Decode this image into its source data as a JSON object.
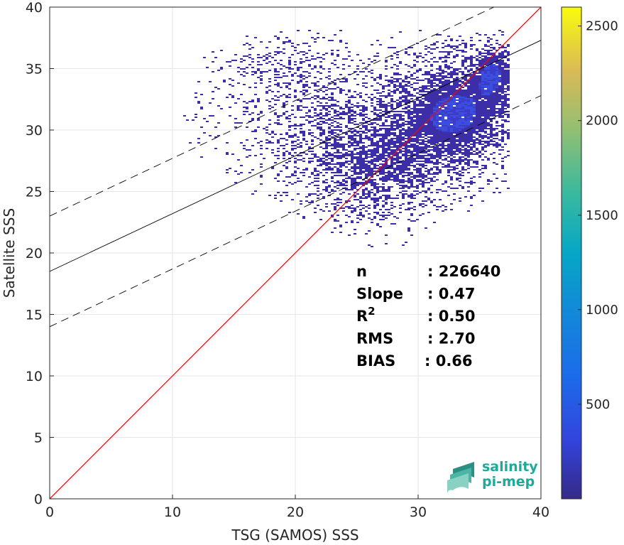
{
  "chart_data": {
    "type": "heatmap",
    "xlabel": "TSG (SAMOS) SSS",
    "ylabel": "Satellite SSS",
    "xlim": [
      0,
      40
    ],
    "ylim": [
      0,
      40
    ],
    "xticks": [
      "0",
      "10",
      "20",
      "30",
      "40"
    ],
    "yticks": [
      "0",
      "5",
      "10",
      "15",
      "20",
      "25",
      "30",
      "35",
      "40"
    ],
    "grid": true,
    "colorbar": {
      "range": [
        0,
        2600
      ],
      "ticks": [
        "500",
        "1000",
        "1500",
        "2000",
        "2500"
      ],
      "colormap": "parula"
    },
    "lines": [
      {
        "kind": "identity",
        "color": "#ff0000",
        "style": "solid",
        "intercept": 0,
        "slope": 1
      },
      {
        "kind": "regression",
        "color": "#000000",
        "style": "solid",
        "intercept": 18.5,
        "slope": 0.47
      },
      {
        "kind": "upper-bound",
        "color": "#000000",
        "style": "dashed",
        "intercept": 23,
        "slope": 0.47
      },
      {
        "kind": "lower-bound",
        "color": "#000000",
        "style": "dashed",
        "intercept": 14,
        "slope": 0.47
      }
    ],
    "density_blobs": [
      {
        "x": 33,
        "y": 31.5,
        "sx": 3.0,
        "sy": 2.6,
        "weight": 1.0
      },
      {
        "x": 36,
        "y": 34.8,
        "sx": 1.0,
        "sy": 1.4,
        "weight": 0.8
      },
      {
        "x": 27,
        "y": 27,
        "sx": 3.2,
        "sy": 2.5,
        "weight": 0.55
      },
      {
        "x": 22,
        "y": 31,
        "sx": 5.0,
        "sy": 3.2,
        "weight": 0.25
      },
      {
        "x": 19,
        "y": 35.5,
        "sx": 3.0,
        "sy": 1.0,
        "weight": 0.15
      }
    ],
    "stats": [
      {
        "label": "n",
        "value": ": 226640"
      },
      {
        "label": "Slope",
        "value": ": 0.47"
      },
      {
        "label": "R",
        "sup": "2",
        "value": ": 0.50"
      },
      {
        "label": "RMS",
        "value": ": 2.70"
      },
      {
        "label": "BIAS",
        "value": ": 0.66"
      }
    ]
  },
  "logo": {
    "line1": "salinity",
    "line2": "pi-mep"
  },
  "colors": {
    "identity": "#ff0000",
    "regression": "#000000",
    "logo": "#1fa99a"
  }
}
